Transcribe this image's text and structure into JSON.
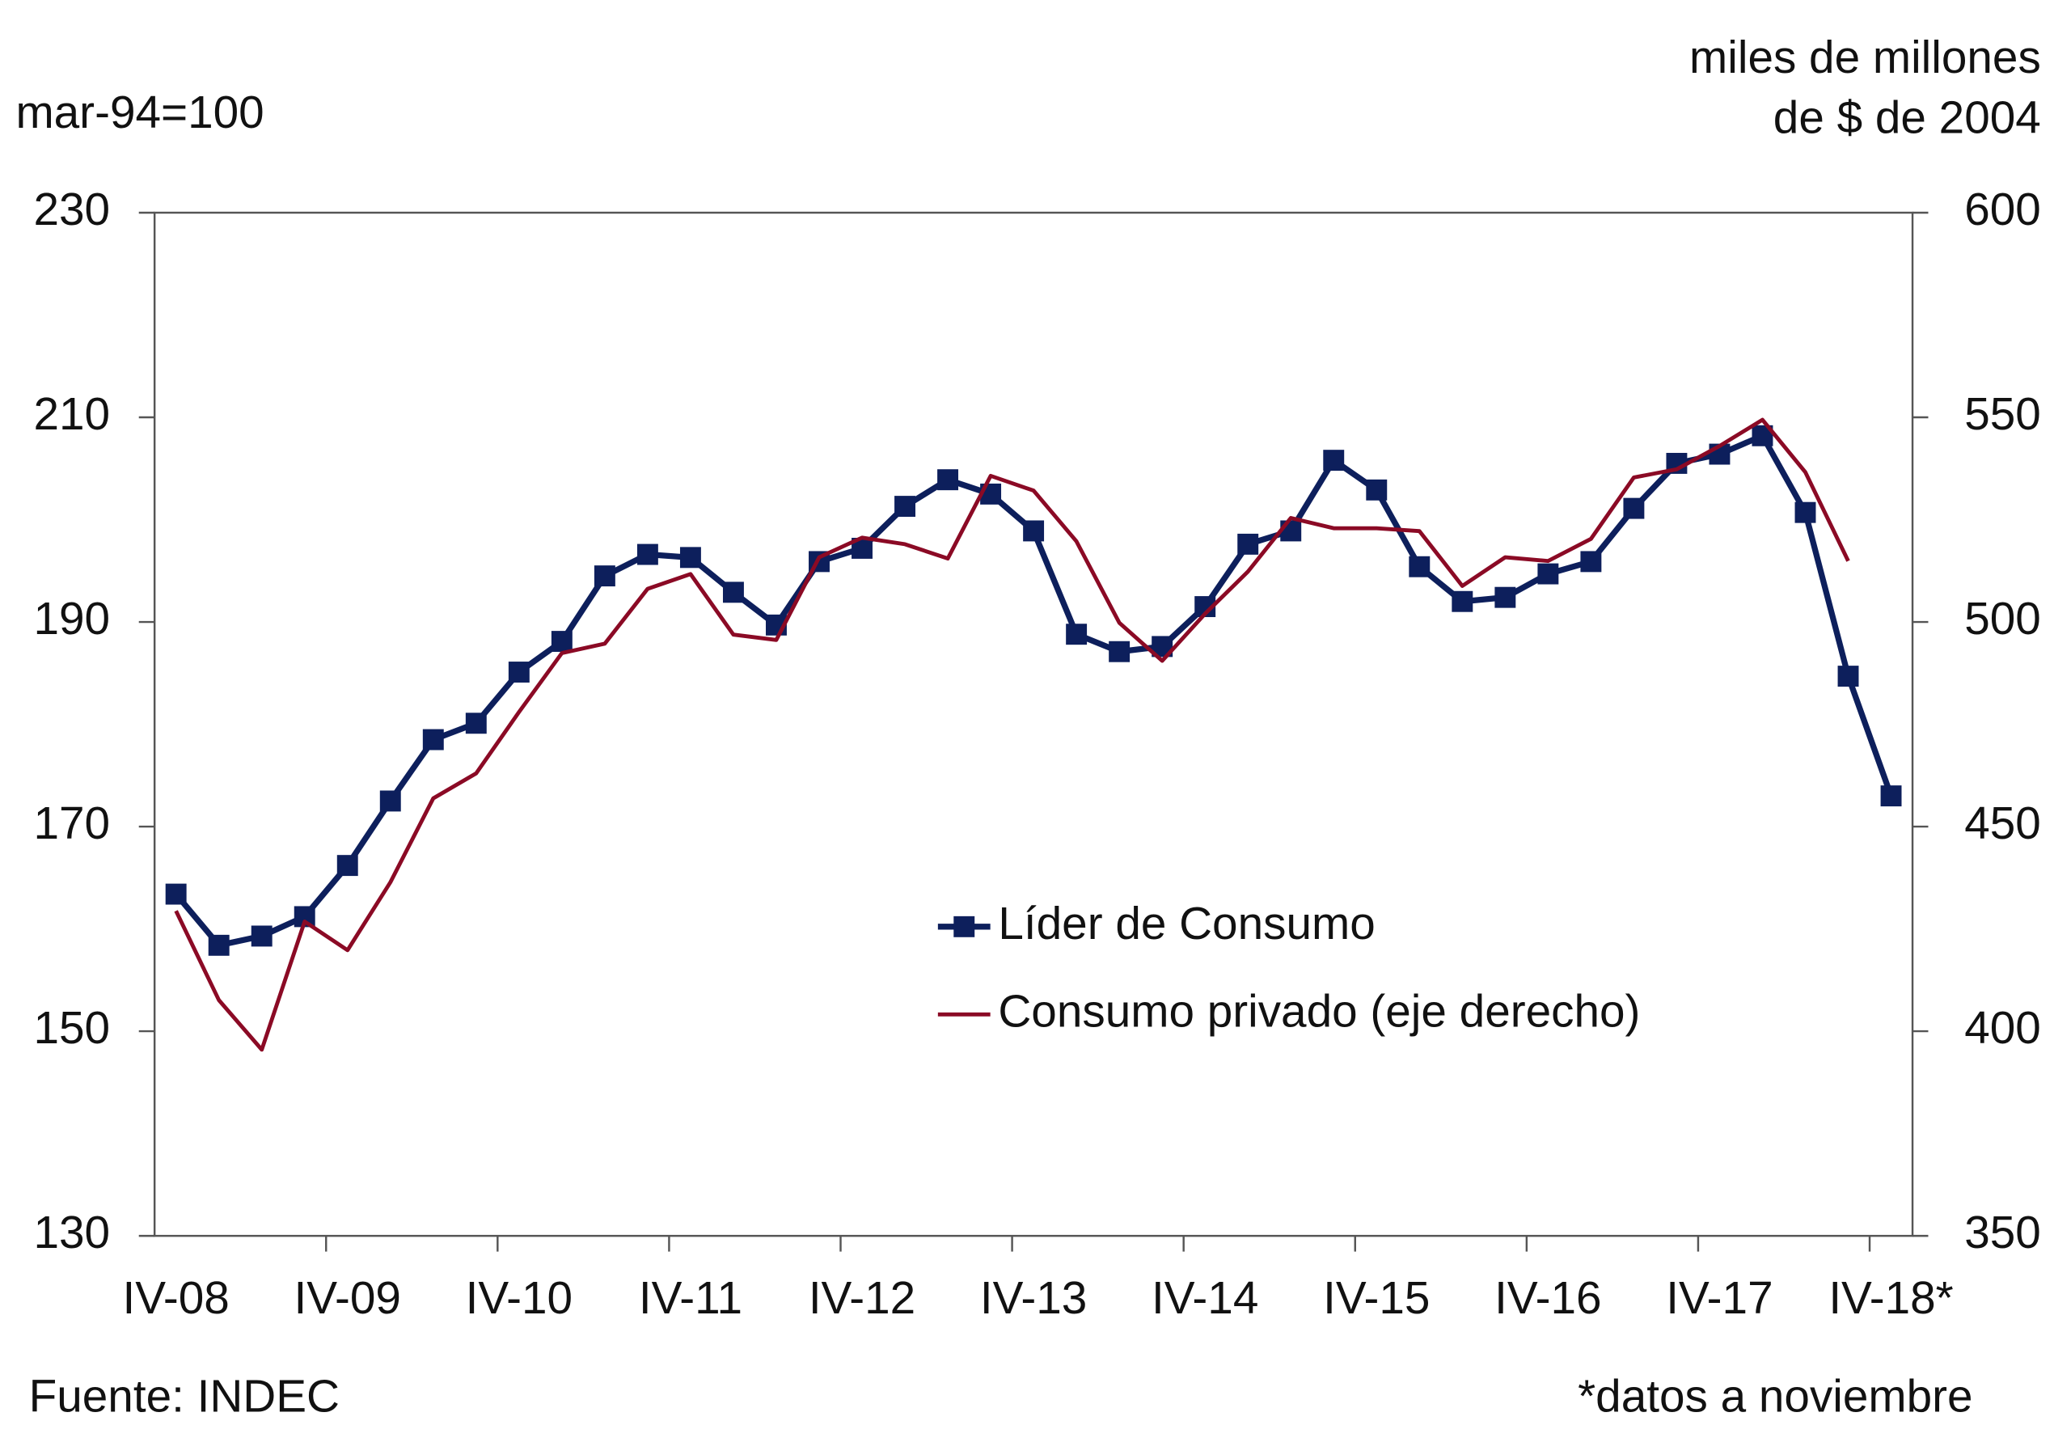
{
  "chart_data": {
    "type": "line",
    "ylabel": "mar-94=100",
    "y2label": [
      "miles de millones",
      "de $ de 2004"
    ],
    "source": "Fuente: INDEC",
    "note": "*datos a noviembre",
    "categories": [
      "IV-08",
      null,
      null,
      null,
      "IV-09",
      null,
      null,
      null,
      "IV-10",
      null,
      null,
      null,
      "IV-11",
      null,
      null,
      null,
      "IV-12",
      null,
      null,
      null,
      "IV-13",
      null,
      null,
      null,
      "IV-14",
      null,
      null,
      null,
      "IV-15",
      null,
      null,
      null,
      "IV-16",
      null,
      null,
      null,
      "IV-17",
      null,
      null,
      null,
      "IV-18*"
    ],
    "ylim": [
      130,
      230
    ],
    "yticks": [
      130,
      150,
      170,
      190,
      210,
      230
    ],
    "y2lim": [
      350,
      600
    ],
    "y2ticks": [
      350,
      400,
      450,
      500,
      550,
      600
    ],
    "series": [
      {
        "name": "Líder de Consumo",
        "color": "#0d1f5c",
        "marker": "square",
        "values": [
          163.4,
          158.4,
          159.3,
          161.2,
          166.2,
          172.5,
          178.5,
          180.1,
          185.1,
          188.1,
          194.5,
          196.6,
          196.3,
          192.9,
          189.7,
          195.9,
          197.2,
          201.3,
          203.9,
          202.5,
          198.9,
          188.8,
          187.1,
          187.6,
          191.5,
          197.6,
          198.9,
          205.8,
          202.9,
          195.4,
          192.0,
          192.4,
          194.7,
          195.9,
          201.1,
          205.5,
          206.4,
          208.2,
          200.7,
          184.7,
          173.0
        ]
      },
      {
        "name": "Consumo privado (eje derecho)",
        "color": "#8b0a25",
        "axis": "y2",
        "values": [
          429.4,
          407.6,
          395.5,
          426.8,
          419.8,
          436.4,
          456.9,
          463.0,
          478.0,
          492.4,
          494.7,
          508.1,
          511.7,
          496.9,
          495.6,
          515.8,
          520.6,
          519.0,
          515.5,
          535.7,
          532.1,
          519.7,
          499.8,
          490.5,
          502.0,
          512.3,
          525.4,
          522.9,
          522.9,
          522.2,
          508.8,
          515.8,
          514.9,
          520.3,
          535.3,
          537.3,
          543.0,
          549.4,
          536.6,
          514.9,
          null
        ]
      }
    ]
  }
}
